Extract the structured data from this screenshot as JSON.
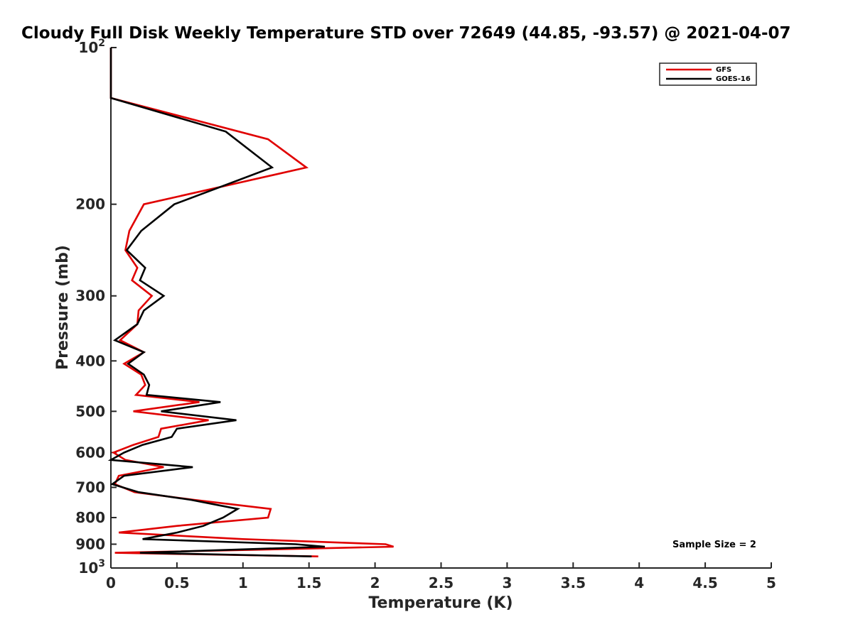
{
  "chart_data": {
    "type": "line",
    "title": "Cloudy Full Disk Weekly Temperature STD over 72649 (44.85, -93.57) @ 2021-04-07",
    "xlabel": "Temperature (K)",
    "ylabel": "Pressure (mb)",
    "xlim": [
      0,
      5
    ],
    "ylim": [
      100,
      1000
    ],
    "yscale": "log",
    "yreversed": true,
    "xticks": [
      "0",
      "0.5",
      "1",
      "1.5",
      "2",
      "2.5",
      "3",
      "3.5",
      "4",
      "4.5",
      "5"
    ],
    "yticks": [
      {
        "value": 100,
        "base": "10",
        "exp": "2"
      },
      {
        "value": 200,
        "label": "200"
      },
      {
        "value": 300,
        "label": "300"
      },
      {
        "value": 400,
        "label": "400"
      },
      {
        "value": 500,
        "label": "500"
      },
      {
        "value": 600,
        "label": "600"
      },
      {
        "value": 700,
        "label": "700"
      },
      {
        "value": 800,
        "label": "800"
      },
      {
        "value": 900,
        "label": "900"
      },
      {
        "value": 1000,
        "base": "10",
        "exp": "3"
      }
    ],
    "grid": false,
    "legend_position": "top-right",
    "annotation": "Sample Size = 2",
    "series": [
      {
        "name": "GFS",
        "color": "#e00000",
        "points": [
          [
            0,
            100
          ],
          [
            0,
            125
          ],
          [
            1.19,
            150
          ],
          [
            1.48,
            170
          ],
          [
            0.25,
            200
          ],
          [
            0.14,
            225
          ],
          [
            0.11,
            245
          ],
          [
            0.2,
            265
          ],
          [
            0.16,
            280
          ],
          [
            0.31,
            300
          ],
          [
            0.21,
            320
          ],
          [
            0.2,
            340
          ],
          [
            0.07,
            365
          ],
          [
            0.25,
            385
          ],
          [
            0.1,
            405
          ],
          [
            0.23,
            425
          ],
          [
            0.26,
            445
          ],
          [
            0.19,
            465
          ],
          [
            0.67,
            480
          ],
          [
            0.17,
            500
          ],
          [
            0.74,
            520
          ],
          [
            0.38,
            540
          ],
          [
            0.36,
            560
          ],
          [
            0.17,
            580
          ],
          [
            0.02,
            600
          ],
          [
            0.11,
            620
          ],
          [
            0.4,
            640
          ],
          [
            0.06,
            665
          ],
          [
            0.03,
            690
          ],
          [
            0.18,
            715
          ],
          [
            0.63,
            740
          ],
          [
            1.21,
            770
          ],
          [
            1.19,
            800
          ],
          [
            0.5,
            830
          ],
          [
            0.06,
            855
          ],
          [
            1.0,
            880
          ],
          [
            2.08,
            900
          ],
          [
            2.14,
            910
          ],
          [
            0.03,
            935
          ],
          [
            1.57,
            950
          ]
        ]
      },
      {
        "name": "GOES-16",
        "color": "#000000",
        "points": [
          [
            0,
            100
          ],
          [
            0,
            125
          ],
          [
            0.87,
            145
          ],
          [
            1.22,
            170
          ],
          [
            0.48,
            200
          ],
          [
            0.23,
            225
          ],
          [
            0.12,
            245
          ],
          [
            0.26,
            265
          ],
          [
            0.22,
            280
          ],
          [
            0.4,
            300
          ],
          [
            0.25,
            320
          ],
          [
            0.2,
            340
          ],
          [
            0.03,
            365
          ],
          [
            0.25,
            385
          ],
          [
            0.13,
            405
          ],
          [
            0.25,
            425
          ],
          [
            0.29,
            445
          ],
          [
            0.27,
            465
          ],
          [
            0.83,
            480
          ],
          [
            0.38,
            500
          ],
          [
            0.95,
            520
          ],
          [
            0.5,
            540
          ],
          [
            0.46,
            560
          ],
          [
            0.24,
            580
          ],
          [
            0.1,
            600
          ],
          [
            0,
            620
          ],
          [
            0.62,
            640
          ],
          [
            0.1,
            665
          ],
          [
            0.01,
            690
          ],
          [
            0.21,
            715
          ],
          [
            0.61,
            740
          ],
          [
            0.96,
            770
          ],
          [
            0.85,
            800
          ],
          [
            0.7,
            830
          ],
          [
            0.5,
            855
          ],
          [
            0.24,
            880
          ],
          [
            1.4,
            900
          ],
          [
            1.62,
            910
          ],
          [
            0.22,
            935
          ],
          [
            1.52,
            950
          ]
        ]
      }
    ]
  }
}
